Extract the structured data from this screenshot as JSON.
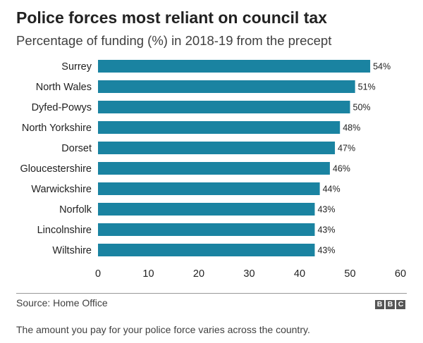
{
  "colors": {
    "bar": "#1a83a1",
    "text": "#222222",
    "rule": "#999999"
  },
  "logo": "BBC",
  "footer": {
    "source": "Source: Home Office",
    "caption": "The amount you pay for your police force varies across the country."
  },
  "chart_data": {
    "type": "bar",
    "orientation": "horizontal",
    "title": "Police forces most reliant on council tax",
    "subtitle": "Percentage of funding (%) in 2018-19 from the precept",
    "categories": [
      "Surrey",
      "North Wales",
      "Dyfed-Powys",
      "North Yorkshire",
      "Dorset",
      "Gloucestershire",
      "Warwickshire",
      "Norfolk",
      "Lincolnshire",
      "Wiltshire"
    ],
    "values": [
      54,
      51,
      50,
      48,
      47,
      46,
      44,
      43,
      43,
      43
    ],
    "value_labels": [
      "54%",
      "51%",
      "50%",
      "48%",
      "47%",
      "46%",
      "44%",
      "43%",
      "43%",
      "43%"
    ],
    "xlim": [
      0,
      60
    ],
    "xticks": [
      0,
      10,
      20,
      30,
      40,
      50,
      60
    ],
    "grid": false,
    "legend": "none"
  }
}
